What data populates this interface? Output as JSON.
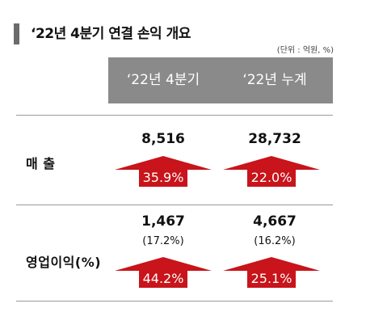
{
  "title": "‘22년 4분기 연결 손익 개요",
  "unit_note": "(단위 : 억원, %)",
  "columns": [
    "‘22년 4분기",
    "‘22년 누계"
  ],
  "colors": {
    "arrow": "#c8141a",
    "header": "#8a8a8a"
  },
  "rows": [
    {
      "label": "매 출",
      "q4": {
        "value": "8,516",
        "growth": "35.9%"
      },
      "cum": {
        "value": "28,732",
        "growth": "22.0%"
      }
    },
    {
      "label": "영업이익(%)",
      "q4": {
        "value": "1,467",
        "margin": "(17.2%)",
        "growth": "44.2%"
      },
      "cum": {
        "value": "4,667",
        "margin": "(16.2%)",
        "growth": "25.1%"
      }
    }
  ]
}
